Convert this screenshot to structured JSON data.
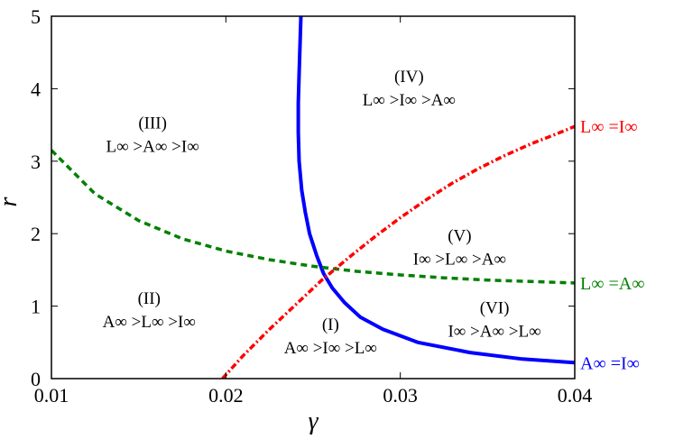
{
  "chart_data": {
    "type": "line",
    "xlabel": "γ",
    "ylabel": "r",
    "xlim": [
      0.01,
      0.04
    ],
    "ylim": [
      0,
      5
    ],
    "grid": false,
    "x_ticks": [
      "0.01",
      "0.02",
      "0.03",
      "0.04"
    ],
    "y_ticks": [
      "0",
      "1",
      "2",
      "3",
      "4",
      "5"
    ],
    "series": [
      {
        "name": "A∞ =I∞",
        "color": "#0000ff",
        "style": "solid",
        "x": [
          0.0243,
          0.02425,
          0.0242,
          0.02415,
          0.02415,
          0.0242,
          0.02435,
          0.02455,
          0.0248,
          0.0252,
          0.0256,
          0.0261,
          0.0268,
          0.0277,
          0.029,
          0.031,
          0.034,
          0.037,
          0.04
        ],
        "y": [
          5.0,
          4.6,
          4.2,
          3.8,
          3.4,
          3.0,
          2.6,
          2.3,
          2.0,
          1.7,
          1.45,
          1.25,
          1.05,
          0.85,
          0.68,
          0.5,
          0.36,
          0.27,
          0.22
        ]
      },
      {
        "name": "L∞ =A∞",
        "color": "#008000",
        "style": "dashed",
        "x": [
          0.01,
          0.0125,
          0.015,
          0.0175,
          0.02,
          0.0225,
          0.025,
          0.0275,
          0.03,
          0.0325,
          0.035,
          0.0375,
          0.04
        ],
        "y": [
          3.15,
          2.55,
          2.18,
          1.93,
          1.76,
          1.64,
          1.55,
          1.48,
          1.43,
          1.39,
          1.36,
          1.34,
          1.32
        ]
      },
      {
        "name": "L∞ =I∞",
        "color": "#ff0000",
        "style": "dashdot",
        "x": [
          0.0198,
          0.021,
          0.0225,
          0.024,
          0.0255,
          0.027,
          0.0285,
          0.03,
          0.0315,
          0.033,
          0.0345,
          0.036,
          0.0375,
          0.039,
          0.04
        ],
        "y": [
          0.0,
          0.32,
          0.68,
          1.02,
          1.36,
          1.66,
          1.95,
          2.22,
          2.47,
          2.7,
          2.9,
          3.08,
          3.24,
          3.38,
          3.48
        ]
      }
    ],
    "regions": [
      {
        "id": "I",
        "roman": "(I)",
        "order": "A∞ >I∞ >L∞",
        "x": 0.026,
        "y": 0.62
      },
      {
        "id": "II",
        "roman": "(II)",
        "order": "A∞ >L∞ >I∞",
        "x": 0.0156,
        "y": 0.98
      },
      {
        "id": "III",
        "roman": "(III)",
        "order": "L∞ >A∞ >I∞",
        "x": 0.0158,
        "y": 3.4
      },
      {
        "id": "IV",
        "roman": "(IV)",
        "order": "L∞ >I∞ >A∞",
        "x": 0.0305,
        "y": 4.04
      },
      {
        "id": "V",
        "roman": "(V)",
        "order": "I∞ >L∞ >A∞",
        "x": 0.0334,
        "y": 1.85
      },
      {
        "id": "VI",
        "roman": "(VI)",
        "order": "I∞ >A∞ >L∞",
        "x": 0.0354,
        "y": 0.85
      }
    ]
  }
}
